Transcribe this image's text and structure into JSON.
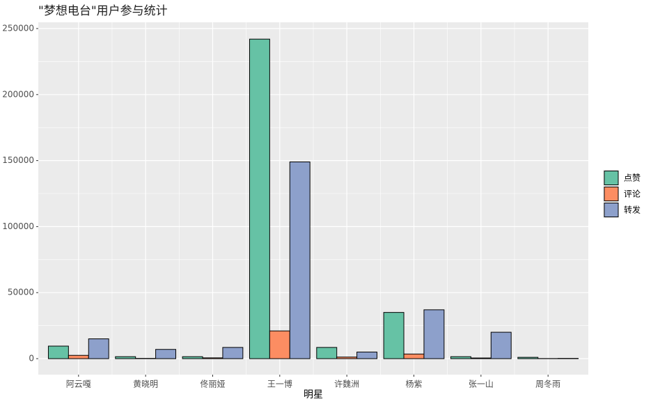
{
  "chart_data": {
    "type": "bar",
    "title": "\"梦想电台\"用户参与统计",
    "x_label": "明星",
    "categories": [
      "阿云嘎",
      "黄晓明",
      "佟丽娅",
      "王一博",
      "许魏洲",
      "杨紫",
      "张一山",
      "周冬雨"
    ],
    "series": [
      {
        "name": "点赞",
        "color": "#66C2A5",
        "values": [
          9500,
          1500,
          1500,
          242000,
          8500,
          35000,
          1500,
          1000
        ]
      },
      {
        "name": "评论",
        "color": "#FC8D62",
        "values": [
          2500,
          200,
          600,
          21000,
          1200,
          3500,
          500,
          100
        ]
      },
      {
        "name": "转发",
        "color": "#8DA0CB",
        "values": [
          15000,
          7000,
          8500,
          149000,
          5000,
          37000,
          20000,
          200
        ]
      }
    ],
    "ylim": [
      -12130,
      254750
    ],
    "yticks": [
      0,
      50000,
      100000,
      150000,
      200000,
      250000
    ],
    "grid": true,
    "minor_grid": true,
    "legend": "right"
  }
}
